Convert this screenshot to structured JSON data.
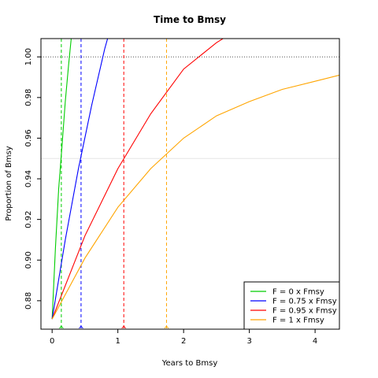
{
  "chart_data": {
    "type": "line",
    "title": "Time to Bmsy",
    "xlabel": "Years to Bmsy",
    "ylabel": "Proportion of Bmsy",
    "xlim": [
      -0.17,
      4.37
    ],
    "ylim": [
      0.866,
      1.009
    ],
    "xticks": [
      "0",
      "1",
      "2",
      "3",
      "4"
    ],
    "yticks": [
      "0.88",
      "0.90",
      "0.92",
      "0.94",
      "0.96",
      "0.98",
      "1.00"
    ],
    "reference_lines": {
      "horizontal_dotted": 1.0,
      "horizontal_light": 0.95
    },
    "series": [
      {
        "name": "F = 0 x Fmsy",
        "color": "#00cd00",
        "target_year": 0.14,
        "x": [
          0,
          0.05,
          0.1,
          0.15,
          0.2,
          0.25,
          0.3
        ],
        "y": [
          0.871,
          0.906,
          0.935,
          0.956,
          0.978,
          0.996,
          1.012
        ]
      },
      {
        "name": "F = 0.75 x Fmsy",
        "color": "#0000ff",
        "target_year": 0.44,
        "x": [
          0,
          0.2,
          0.4,
          0.6,
          0.8,
          0.87
        ],
        "y": [
          0.871,
          0.91,
          0.945,
          0.976,
          1.004,
          1.012
        ]
      },
      {
        "name": "F = 0.95 x Fmsy",
        "color": "#ff0000",
        "target_year": 1.09,
        "x": [
          0,
          0.5,
          1.0,
          1.5,
          2.0,
          2.5,
          2.65
        ],
        "y": [
          0.871,
          0.912,
          0.945,
          0.972,
          0.994,
          1.007,
          1.01
        ]
      },
      {
        "name": "F = 1 x Fmsy",
        "color": "#ffa500",
        "target_year": 1.74,
        "x": [
          0,
          0.5,
          1.0,
          1.5,
          2.0,
          2.5,
          3.0,
          3.5,
          4.0,
          4.37
        ],
        "y": [
          0.871,
          0.901,
          0.926,
          0.945,
          0.96,
          0.971,
          0.978,
          0.984,
          0.988,
          0.991
        ]
      }
    ],
    "legend_position": "bottom-right",
    "grid": false
  }
}
